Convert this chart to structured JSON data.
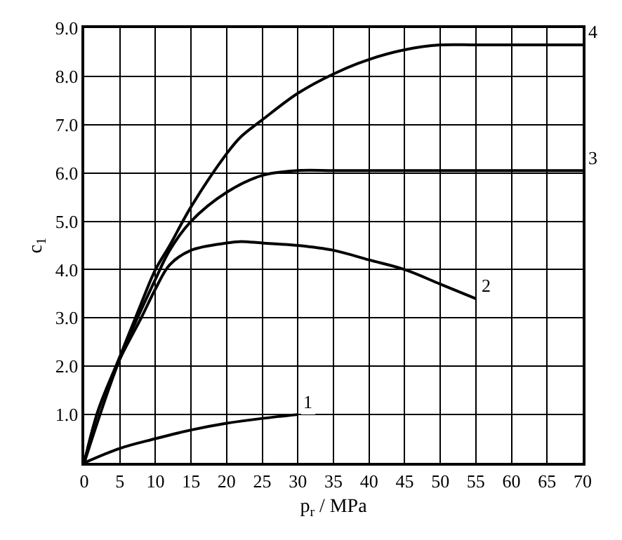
{
  "chart_data": {
    "type": "line",
    "xlabel": "p$_{r}$ / MPa",
    "ylabel": "c$_{1}$",
    "xlim": [
      0,
      70
    ],
    "xticks": [
      0,
      5,
      10,
      15,
      20,
      25,
      30,
      35,
      40,
      45,
      50,
      55,
      60,
      65,
      70
    ],
    "ylim": [
      0,
      9
    ],
    "yticks": [
      {
        "value": 0,
        "label": null
      },
      {
        "value": 1,
        "label": "1.0"
      },
      {
        "value": 2,
        "label": "2.0"
      },
      {
        "value": 3,
        "label": "3.0"
      },
      {
        "value": 4,
        "label": "4.0"
      },
      {
        "value": 5,
        "label": "5.0"
      },
      {
        "value": 6,
        "label": "6.0"
      },
      {
        "value": 7,
        "label": "7.0"
      },
      {
        "value": 8,
        "label": "8.0"
      },
      {
        "value": 9,
        "label": "9.0"
      }
    ],
    "grid": true,
    "marker": "none",
    "line_style": "solid",
    "series": [
      {
        "color": "#000000",
        "x": [
          0,
          5,
          10,
          15,
          20,
          25,
          30
        ],
        "values": [
          0,
          0.3,
          0.5,
          0.68,
          0.82,
          0.92,
          1.0
        ]
      },
      {
        "color": "#000000",
        "x": [
          0,
          2,
          5,
          8,
          10,
          12,
          15,
          20,
          22,
          25,
          30,
          35,
          40,
          45,
          50,
          55
        ],
        "values": [
          0,
          1.1,
          2.15,
          3.0,
          3.6,
          4.1,
          4.4,
          4.55,
          4.58,
          4.55,
          4.5,
          4.4,
          4.2,
          4.0,
          3.7,
          3.4
        ]
      },
      {
        "color": "#000000",
        "x": [
          0,
          5,
          10,
          12,
          15,
          20,
          25,
          30,
          35,
          40,
          50,
          60,
          70
        ],
        "values": [
          0,
          2.15,
          3.8,
          4.4,
          5.0,
          5.6,
          5.95,
          6.05,
          6.05,
          6.05,
          6.05,
          6.05,
          6.05
        ]
      },
      {
        "color": "#000000",
        "x": [
          0,
          2,
          5,
          8,
          10,
          12,
          15,
          20,
          22,
          25,
          30,
          35,
          40,
          45,
          50,
          55,
          60,
          65,
          70
        ],
        "values": [
          0,
          1.1,
          2.2,
          3.3,
          4.0,
          4.5,
          5.3,
          6.4,
          6.75,
          7.1,
          7.65,
          8.05,
          8.35,
          8.55,
          8.65,
          8.65,
          8.65,
          8.65,
          8.65
        ]
      }
    ],
    "annotations": [
      {
        "text": "1",
        "x": 30,
        "y": 1.0
      },
      {
        "text": "2",
        "x": 55,
        "y": 3.4
      },
      {
        "text": "3",
        "x": 70,
        "y": 6.05
      },
      {
        "text": "4",
        "x": 70,
        "y": 8.65
      }
    ]
  }
}
